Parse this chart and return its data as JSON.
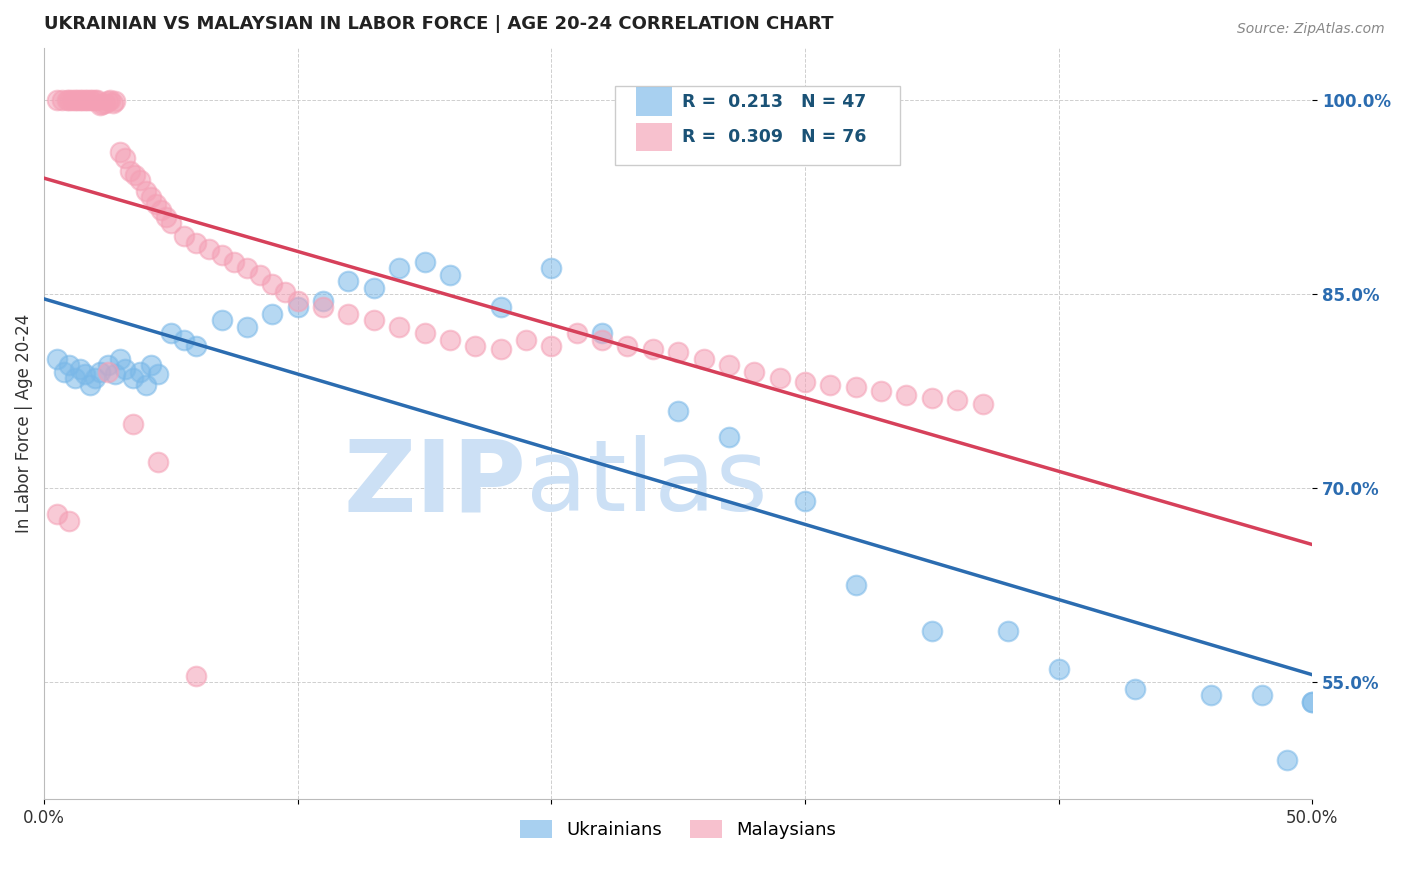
{
  "title": "UKRAINIAN VS MALAYSIAN IN LABOR FORCE | AGE 20-24 CORRELATION CHART",
  "source": "Source: ZipAtlas.com",
  "ylabel_label": "In Labor Force | Age 20-24",
  "xlim": [
    0.0,
    0.5
  ],
  "ylim": [
    0.46,
    1.04
  ],
  "yticks": [
    0.55,
    0.7,
    0.85,
    1.0
  ],
  "yticklabels": [
    "55.0%",
    "70.0%",
    "85.0%",
    "100.0%"
  ],
  "xticks": [
    0.0,
    0.1,
    0.2,
    0.3,
    0.4,
    0.5
  ],
  "xticklabels": [
    "0.0%",
    "",
    "",
    "",
    "",
    "50.0%"
  ],
  "blue_color": "#7ab8e8",
  "pink_color": "#f4a0b5",
  "blue_line_color": "#2b6cb0",
  "pink_line_color": "#d6405a",
  "legend_R_blue": "0.213",
  "legend_N_blue": "47",
  "legend_R_pink": "0.309",
  "legend_N_pink": "76",
  "watermark_zip": "ZIP",
  "watermark_atlas": "atlas",
  "watermark_color": "#cce0f5",
  "background_color": "#ffffff",
  "grid_color": "#bbbbbb",
  "blue_x": [
    0.005,
    0.008,
    0.01,
    0.012,
    0.014,
    0.016,
    0.018,
    0.02,
    0.022,
    0.025,
    0.028,
    0.03,
    0.032,
    0.035,
    0.038,
    0.04,
    0.042,
    0.045,
    0.05,
    0.055,
    0.06,
    0.07,
    0.08,
    0.09,
    0.1,
    0.11,
    0.12,
    0.13,
    0.14,
    0.15,
    0.16,
    0.18,
    0.2,
    0.22,
    0.25,
    0.27,
    0.3,
    0.32,
    0.35,
    0.38,
    0.4,
    0.43,
    0.46,
    0.48,
    0.49,
    0.5,
    0.5
  ],
  "blue_y": [
    0.8,
    0.79,
    0.795,
    0.785,
    0.792,
    0.788,
    0.78,
    0.785,
    0.79,
    0.795,
    0.788,
    0.8,
    0.792,
    0.785,
    0.79,
    0.78,
    0.795,
    0.788,
    0.82,
    0.815,
    0.81,
    0.83,
    0.825,
    0.835,
    0.84,
    0.845,
    0.86,
    0.855,
    0.87,
    0.875,
    0.865,
    0.84,
    0.87,
    0.82,
    0.76,
    0.74,
    0.69,
    0.625,
    0.59,
    0.59,
    0.56,
    0.545,
    0.54,
    0.54,
    0.49,
    0.535,
    0.535
  ],
  "pink_x": [
    0.005,
    0.007,
    0.009,
    0.01,
    0.011,
    0.012,
    0.013,
    0.014,
    0.015,
    0.016,
    0.017,
    0.018,
    0.019,
    0.02,
    0.021,
    0.022,
    0.023,
    0.024,
    0.025,
    0.026,
    0.027,
    0.028,
    0.03,
    0.032,
    0.034,
    0.036,
    0.038,
    0.04,
    0.042,
    0.044,
    0.046,
    0.048,
    0.05,
    0.055,
    0.06,
    0.065,
    0.07,
    0.075,
    0.08,
    0.085,
    0.09,
    0.095,
    0.1,
    0.11,
    0.12,
    0.13,
    0.14,
    0.15,
    0.16,
    0.17,
    0.18,
    0.19,
    0.2,
    0.21,
    0.22,
    0.23,
    0.24,
    0.25,
    0.26,
    0.27,
    0.28,
    0.29,
    0.3,
    0.31,
    0.32,
    0.33,
    0.34,
    0.35,
    0.36,
    0.37,
    0.005,
    0.01,
    0.025,
    0.035,
    0.045,
    0.06
  ],
  "pink_y": [
    1.0,
    1.0,
    1.0,
    1.0,
    1.0,
    1.0,
    1.0,
    1.0,
    1.0,
    1.0,
    1.0,
    1.0,
    1.0,
    1.0,
    1.0,
    0.996,
    0.997,
    0.998,
    0.999,
    1.0,
    0.998,
    0.999,
    0.96,
    0.955,
    0.945,
    0.942,
    0.938,
    0.93,
    0.925,
    0.92,
    0.915,
    0.91,
    0.905,
    0.895,
    0.89,
    0.885,
    0.88,
    0.875,
    0.87,
    0.865,
    0.858,
    0.852,
    0.845,
    0.84,
    0.835,
    0.83,
    0.825,
    0.82,
    0.815,
    0.81,
    0.808,
    0.815,
    0.81,
    0.82,
    0.815,
    0.81,
    0.808,
    0.805,
    0.8,
    0.795,
    0.79,
    0.785,
    0.782,
    0.78,
    0.778,
    0.775,
    0.772,
    0.77,
    0.768,
    0.765,
    0.68,
    0.675,
    0.79,
    0.75,
    0.72,
    0.555
  ]
}
